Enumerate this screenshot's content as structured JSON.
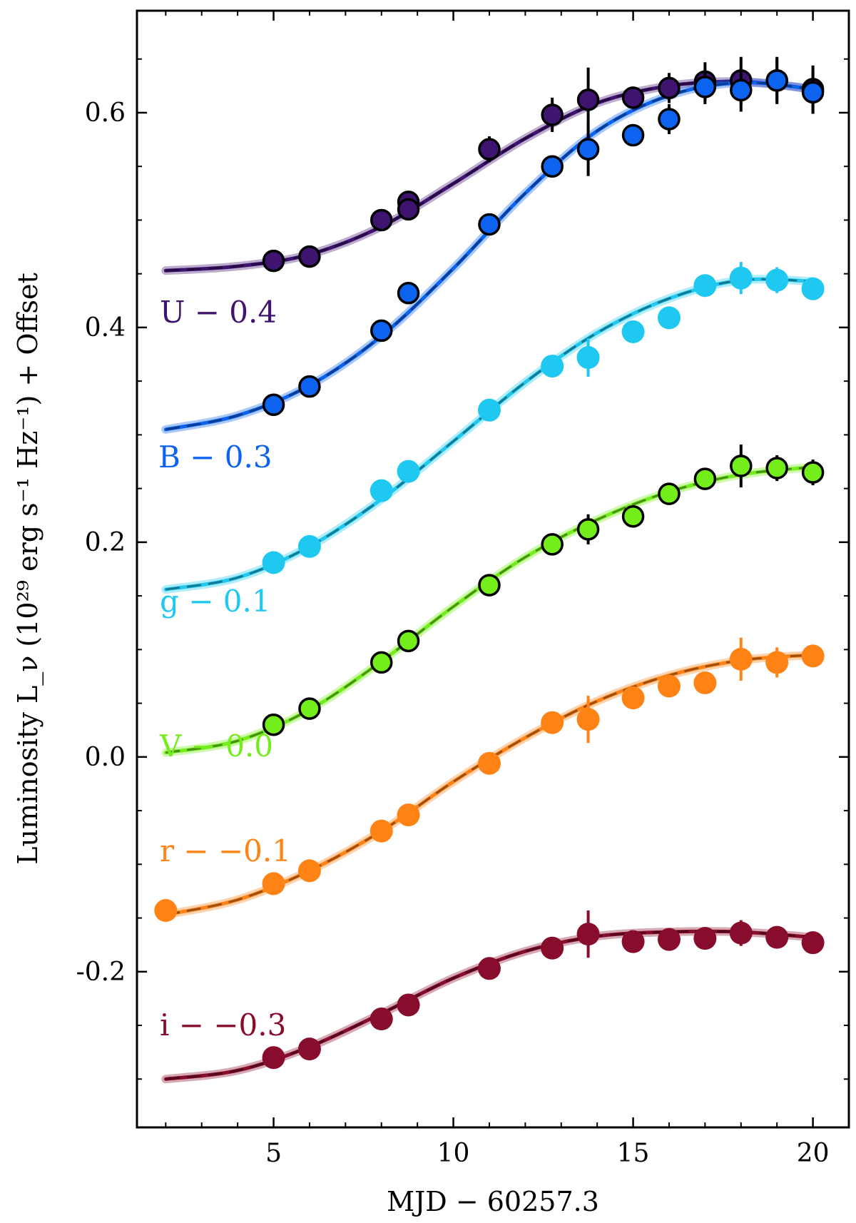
{
  "chart_data": {
    "type": "scatter",
    "xlabel": "MJD − 60257.3",
    "ylabel": "Luminosity L_ν (10²⁹ erg s⁻¹ Hz⁻¹) + Offset",
    "xlim": [
      1.2,
      21.0
    ],
    "ylim": [
      -0.345,
      0.695
    ],
    "xticks": [
      5,
      10,
      15,
      20
    ],
    "xtick_labels": [
      "5",
      "10",
      "15",
      "20"
    ],
    "yticks": [
      -0.2,
      0.0,
      0.2,
      0.4,
      0.6
    ],
    "ytick_labels": [
      "-0.2",
      "0.0",
      "0.2",
      "0.4",
      "0.6"
    ],
    "grid": false,
    "series": [
      {
        "name": "U",
        "label": "U − 0.4",
        "color": "#3f1370",
        "marker_edge": true,
        "x": [
          5.0,
          6.0,
          8.0,
          8.75,
          8.75,
          11.0,
          12.75,
          13.75,
          15.0,
          16.0,
          17.0,
          18.0,
          19.0,
          20.0
        ],
        "y": [
          0.462,
          0.466,
          0.5,
          0.517,
          0.51,
          0.566,
          0.598,
          0.612,
          0.614,
          0.623,
          0.629,
          0.63,
          0.63,
          0.622
        ],
        "err": [
          0.006,
          0.008,
          0.005,
          0.01,
          0.008,
          0.012,
          0.016,
          0.03,
          0.01,
          0.014,
          0.018,
          0.022,
          0.022,
          0.022
        ],
        "model_x": [
          2.0,
          4.0,
          6.0,
          8.0,
          10.0,
          12.0,
          14.0,
          16.0,
          18.0,
          20.0
        ],
        "model_y": [
          0.453,
          0.457,
          0.468,
          0.494,
          0.534,
          0.576,
          0.609,
          0.625,
          0.629,
          0.622
        ]
      },
      {
        "name": "B",
        "label": "B − 0.3",
        "color": "#0c63f0",
        "marker_edge": true,
        "x": [
          5.0,
          6.0,
          8.0,
          8.75,
          11.0,
          12.75,
          13.75,
          15.0,
          16.0,
          17.0,
          18.0,
          19.0,
          20.0
        ],
        "y": [
          0.328,
          0.345,
          0.397,
          0.432,
          0.496,
          0.55,
          0.566,
          0.579,
          0.594,
          0.624,
          0.621,
          0.63,
          0.619
        ],
        "err": [
          0.005,
          0.006,
          0.006,
          0.006,
          0.008,
          0.01,
          0.025,
          0.01,
          0.014,
          0.016,
          0.02,
          0.02,
          0.02
        ],
        "model_x": [
          2.0,
          4.0,
          6.0,
          8.0,
          10.0,
          12.0,
          14.0,
          16.0,
          18.0,
          20.0
        ],
        "model_y": [
          0.305,
          0.318,
          0.346,
          0.392,
          0.455,
          0.525,
          0.583,
          0.616,
          0.628,
          0.622
        ]
      },
      {
        "name": "g",
        "label": "g − 0.1",
        "color": "#1ec8f0",
        "marker_edge": false,
        "x": [
          5.0,
          6.0,
          8.0,
          8.75,
          11.0,
          12.75,
          13.75,
          15.0,
          16.0,
          17.0,
          18.0,
          19.0,
          20.0
        ],
        "y": [
          0.181,
          0.196,
          0.248,
          0.266,
          0.323,
          0.364,
          0.372,
          0.396,
          0.409,
          0.439,
          0.446,
          0.444,
          0.436
        ],
        "err": [
          0.005,
          0.005,
          0.005,
          0.005,
          0.006,
          0.008,
          0.018,
          0.008,
          0.01,
          0.01,
          0.015,
          0.012,
          0.01
        ],
        "model_x": [
          2.0,
          4.0,
          6.0,
          8.0,
          10.0,
          12.0,
          14.0,
          16.0,
          18.0,
          20.0
        ],
        "model_y": [
          0.156,
          0.167,
          0.196,
          0.24,
          0.294,
          0.349,
          0.395,
          0.427,
          0.444,
          0.443
        ]
      },
      {
        "name": "V",
        "label": "V − 0.0",
        "color": "#74ee1a",
        "marker_edge": true,
        "x": [
          5.0,
          6.0,
          8.0,
          8.75,
          11.0,
          12.75,
          13.75,
          15.0,
          16.0,
          17.0,
          18.0,
          19.0,
          20.0
        ],
        "y": [
          0.03,
          0.045,
          0.088,
          0.108,
          0.16,
          0.198,
          0.212,
          0.224,
          0.245,
          0.259,
          0.271,
          0.269,
          0.265
        ],
        "err": [
          0.004,
          0.004,
          0.005,
          0.005,
          0.006,
          0.008,
          0.014,
          0.008,
          0.008,
          0.01,
          0.02,
          0.012,
          0.012
        ],
        "model_x": [
          2.0,
          4.0,
          6.0,
          8.0,
          10.0,
          12.0,
          14.0,
          16.0,
          18.0,
          20.0
        ],
        "model_y": [
          0.004,
          0.015,
          0.044,
          0.089,
          0.14,
          0.186,
          0.221,
          0.247,
          0.263,
          0.27
        ]
      },
      {
        "name": "r",
        "label": "r − −0.1",
        "color": "#ff8214",
        "marker_edge": false,
        "x": [
          2.0,
          5.0,
          6.0,
          8.0,
          8.75,
          11.0,
          12.75,
          13.75,
          15.0,
          16.0,
          17.0,
          18.0,
          19.0,
          20.0
        ],
        "y": [
          -0.143,
          -0.118,
          -0.106,
          -0.069,
          -0.054,
          -0.006,
          0.032,
          0.035,
          0.055,
          0.066,
          0.069,
          0.091,
          0.088,
          0.094
        ],
        "err": [
          0.004,
          0.005,
          0.005,
          0.005,
          0.005,
          0.006,
          0.008,
          0.022,
          0.008,
          0.008,
          0.01,
          0.02,
          0.014,
          0.01
        ],
        "model_x": [
          2.0,
          4.0,
          6.0,
          8.0,
          10.0,
          12.0,
          14.0,
          16.0,
          18.0,
          20.0
        ],
        "model_y": [
          -0.147,
          -0.133,
          -0.106,
          -0.069,
          -0.023,
          0.018,
          0.052,
          0.076,
          0.09,
          0.095
        ]
      },
      {
        "name": "i",
        "label": "i − −0.3",
        "color": "#880c2c",
        "marker_edge": false,
        "x": [
          5.0,
          6.0,
          8.0,
          8.75,
          11.0,
          12.75,
          13.75,
          15.0,
          16.0,
          17.0,
          18.0,
          19.0,
          20.0
        ],
        "y": [
          -0.28,
          -0.272,
          -0.244,
          -0.231,
          -0.197,
          -0.178,
          -0.165,
          -0.172,
          -0.17,
          -0.169,
          -0.164,
          -0.168,
          -0.173
        ],
        "err": [
          0.004,
          0.004,
          0.004,
          0.004,
          0.005,
          0.006,
          0.022,
          0.006,
          0.006,
          0.006,
          0.012,
          0.008,
          0.008
        ],
        "model_x": [
          2.0,
          4.0,
          6.0,
          8.0,
          10.0,
          12.0,
          14.0,
          16.0,
          18.0,
          20.0
        ],
        "model_y": [
          -0.3,
          -0.292,
          -0.27,
          -0.239,
          -0.206,
          -0.181,
          -0.167,
          -0.163,
          -0.163,
          -0.168
        ]
      }
    ]
  }
}
